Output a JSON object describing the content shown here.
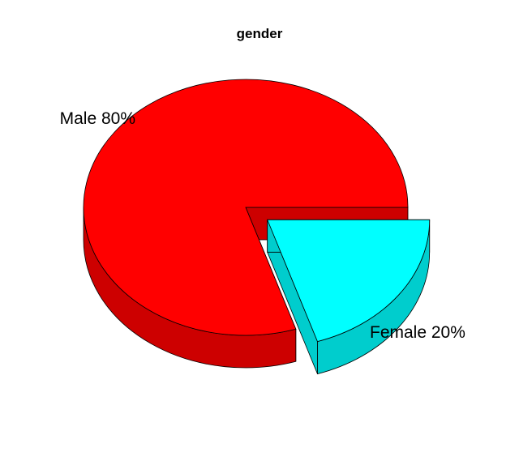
{
  "chart_data": {
    "type": "pie",
    "title": "gender",
    "style": "3d-exploded",
    "slices": [
      {
        "label": "Male",
        "value": 80,
        "percent_label": "Male 80%",
        "color": "#FF0000",
        "side_color": "#CD0000",
        "exploded": false
      },
      {
        "label": "Female",
        "value": 20,
        "percent_label": "Female 20%",
        "color": "#00FFFF",
        "side_color": "#00CDCD",
        "exploded": true
      }
    ]
  }
}
